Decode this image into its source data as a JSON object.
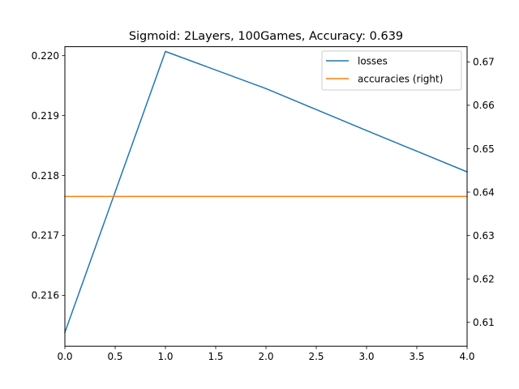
{
  "chart_data": {
    "type": "line",
    "title": "Sigmoid: 2Layers, 100Games, Accuracy: 0.639",
    "xlabel": "",
    "ylabel": "",
    "y2label": "",
    "x": [
      0,
      1,
      2,
      3,
      4
    ],
    "xlim": [
      0,
      4
    ],
    "xticks": [
      0.0,
      0.5,
      1.0,
      1.5,
      2.0,
      2.5,
      3.0,
      3.5,
      4.0
    ],
    "xtick_labels": [
      "0.0",
      "0.5",
      "1.0",
      "1.5",
      "2.0",
      "2.5",
      "3.0",
      "3.5",
      "4.0"
    ],
    "ylim_left": [
      0.21515,
      0.22015
    ],
    "yticks_left": [
      0.216,
      0.217,
      0.218,
      0.219,
      0.22
    ],
    "ytick_labels_left": [
      "0.216",
      "0.217",
      "0.218",
      "0.219",
      "0.220"
    ],
    "ylim_right": [
      0.6045,
      0.6735
    ],
    "yticks_right": [
      0.61,
      0.62,
      0.63,
      0.64,
      0.65,
      0.66,
      0.67
    ],
    "ytick_labels_right": [
      "0.61",
      "0.62",
      "0.63",
      "0.64",
      "0.65",
      "0.66",
      "0.67"
    ],
    "series": [
      {
        "name": "losses",
        "axis": "left",
        "color": "#1f77b4",
        "values": [
          0.21538,
          0.22007,
          0.21945,
          0.21875,
          0.21806
        ]
      },
      {
        "name": "accuracies (right)",
        "axis": "right",
        "color": "#ff7f0e",
        "values": [
          0.639,
          0.639,
          0.639,
          0.639,
          0.639
        ]
      }
    ],
    "grid": false,
    "legend_position": "top-right"
  }
}
